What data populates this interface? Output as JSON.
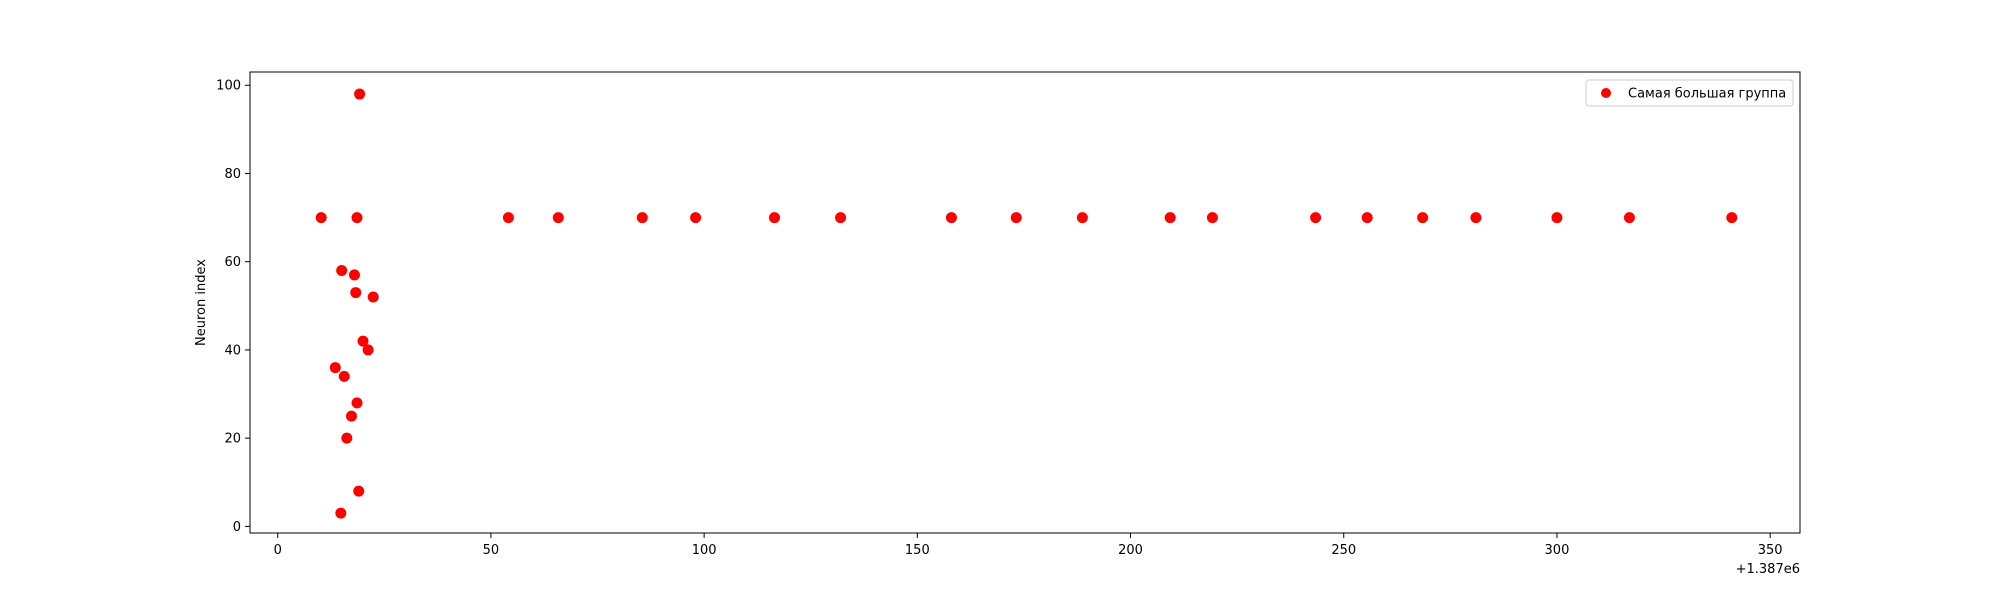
{
  "chart_data": {
    "type": "scatter",
    "title": "",
    "xlabel": "",
    "ylabel": "Neuron index",
    "x_offset_label": "+1.387e6",
    "xlim": [
      -6.5,
      357
    ],
    "ylim": [
      -1.5,
      103
    ],
    "x_ticks": [
      0,
      50,
      100,
      150,
      200,
      250,
      300,
      350
    ],
    "y_ticks": [
      0,
      20,
      40,
      60,
      80,
      100
    ],
    "grid": false,
    "legend_position": "top-right",
    "series": [
      {
        "name": "Самая большая группа",
        "color": "#ff0000",
        "marker": "circle",
        "points": [
          {
            "x": 10.2,
            "y": 70
          },
          {
            "x": 18.6,
            "y": 70
          },
          {
            "x": 19.2,
            "y": 98
          },
          {
            "x": 15.0,
            "y": 58
          },
          {
            "x": 18.0,
            "y": 57
          },
          {
            "x": 18.3,
            "y": 53
          },
          {
            "x": 22.4,
            "y": 52
          },
          {
            "x": 20.0,
            "y": 42
          },
          {
            "x": 21.2,
            "y": 40
          },
          {
            "x": 13.5,
            "y": 36
          },
          {
            "x": 15.6,
            "y": 34
          },
          {
            "x": 18.6,
            "y": 28
          },
          {
            "x": 17.3,
            "y": 25
          },
          {
            "x": 16.2,
            "y": 20
          },
          {
            "x": 19.0,
            "y": 8
          },
          {
            "x": 14.8,
            "y": 3
          },
          {
            "x": 54.1,
            "y": 70
          },
          {
            "x": 65.8,
            "y": 70
          },
          {
            "x": 85.5,
            "y": 70
          },
          {
            "x": 98.0,
            "y": 70
          },
          {
            "x": 116.5,
            "y": 70
          },
          {
            "x": 132.0,
            "y": 70
          },
          {
            "x": 158.0,
            "y": 70
          },
          {
            "x": 173.2,
            "y": 70
          },
          {
            "x": 188.7,
            "y": 70
          },
          {
            "x": 209.3,
            "y": 70
          },
          {
            "x": 219.2,
            "y": 70
          },
          {
            "x": 243.4,
            "y": 70
          },
          {
            "x": 255.5,
            "y": 70
          },
          {
            "x": 268.5,
            "y": 70
          },
          {
            "x": 281.0,
            "y": 70
          },
          {
            "x": 300.0,
            "y": 70
          },
          {
            "x": 317.0,
            "y": 70
          },
          {
            "x": 341.0,
            "y": 70
          }
        ]
      }
    ]
  }
}
